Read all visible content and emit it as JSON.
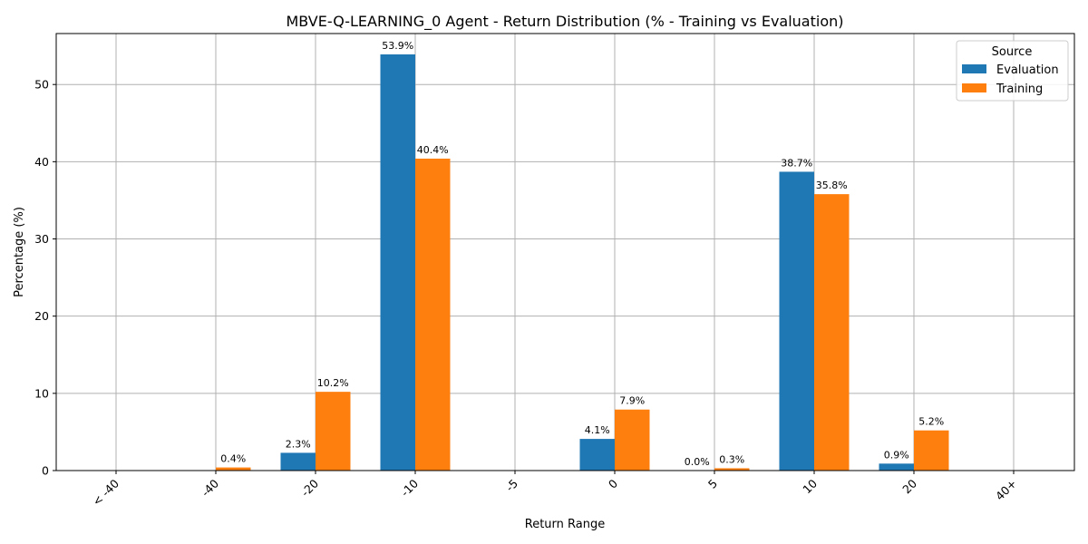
{
  "chart_data": {
    "type": "bar",
    "title": "MBVE-Q-LEARNING_0 Agent - Return Distribution (% - Training vs Evaluation)",
    "xlabel": "Return Range",
    "ylabel": "Percentage (%)",
    "categories": [
      "< -40",
      "-40",
      "-20",
      "-10",
      "-5",
      "0",
      "5",
      "10",
      "20",
      "40+"
    ],
    "series": [
      {
        "name": "Evaluation",
        "color": "#1f77b4",
        "values": [
          0,
          0,
          2.3,
          53.9,
          0,
          4.1,
          0.0,
          38.7,
          0.9,
          0
        ],
        "labels": [
          "",
          "",
          "2.3%",
          "53.9%",
          "",
          "4.1%",
          "0.0%",
          "38.7%",
          "0.9%",
          ""
        ]
      },
      {
        "name": "Training",
        "color": "#ff7f0e",
        "values": [
          0,
          0.4,
          10.2,
          40.4,
          0,
          7.9,
          0.3,
          35.8,
          5.2,
          0
        ],
        "labels": [
          "",
          "0.4%",
          "10.2%",
          "40.4%",
          "",
          "7.9%",
          "0.3%",
          "35.8%",
          "5.2%",
          ""
        ]
      }
    ],
    "ylim": [
      0,
      56.6
    ],
    "yticks": [
      0,
      10,
      20,
      30,
      40,
      50
    ],
    "grid": true,
    "legend": {
      "title": "Source",
      "placement": "top-right"
    }
  }
}
